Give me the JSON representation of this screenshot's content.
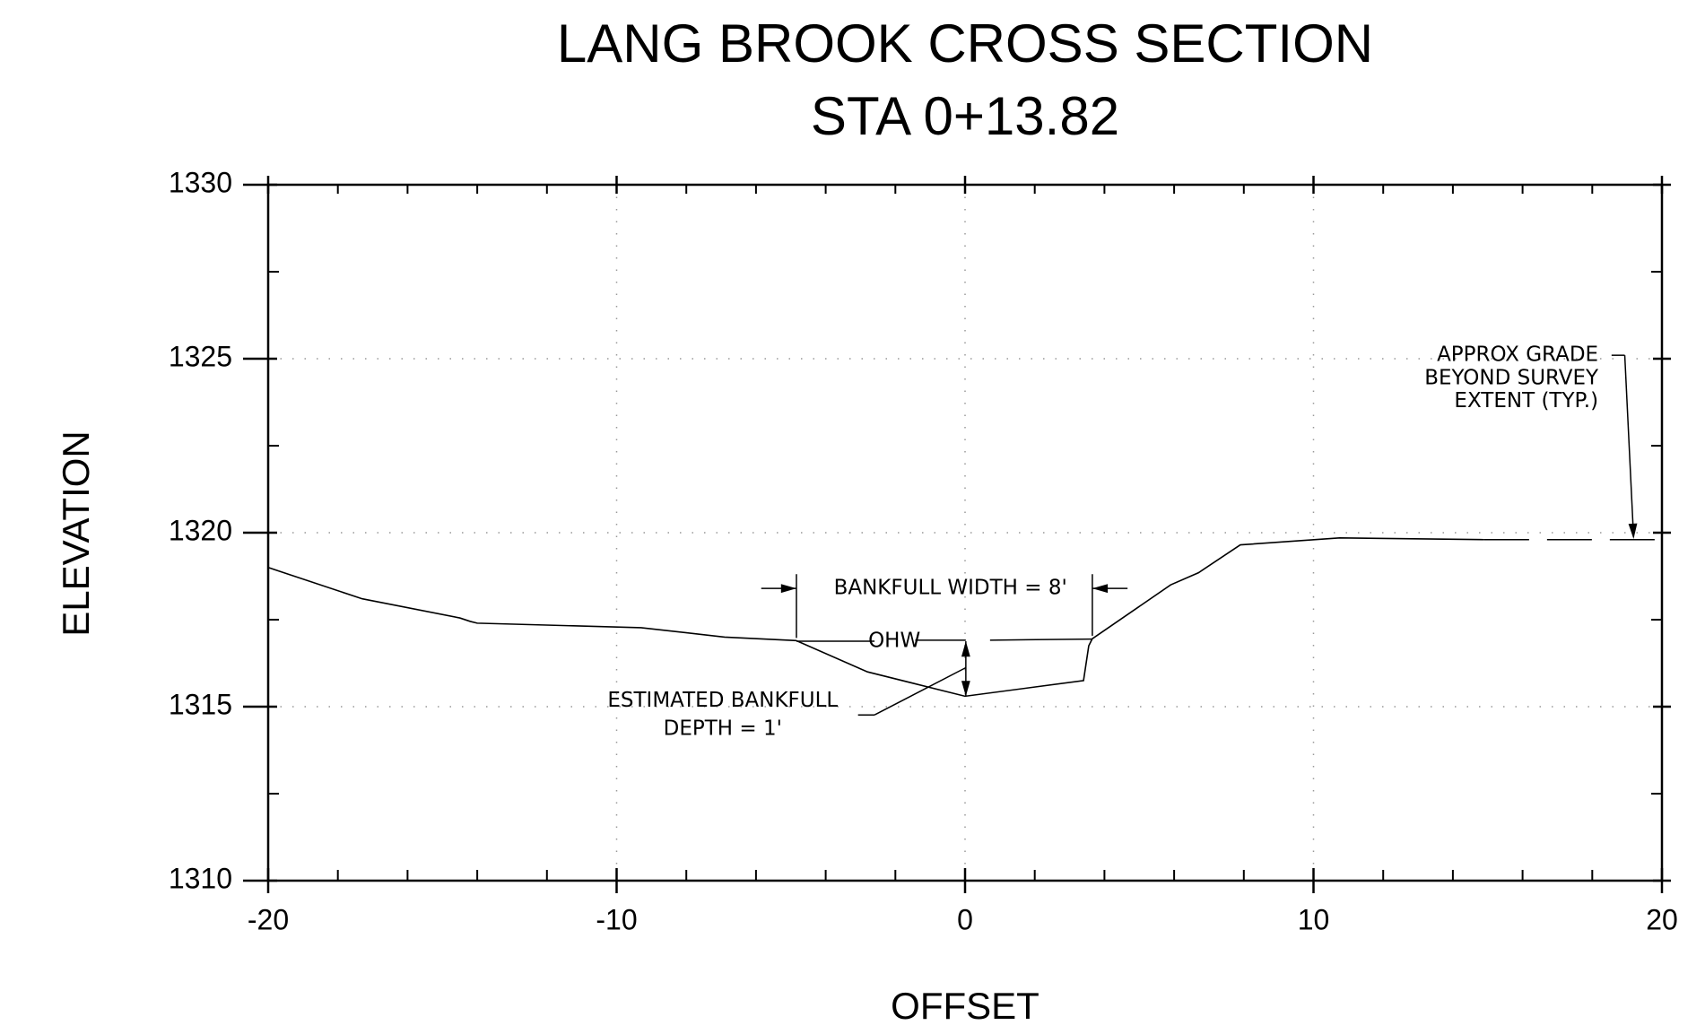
{
  "chart_data": {
    "type": "line",
    "title": [
      "LANG BROOK CROSS SECTION",
      "STA 0+13.82"
    ],
    "xlabel": "OFFSET",
    "ylabel": "ELEVATION",
    "xlim": [
      -20,
      20
    ],
    "ylim": [
      1310,
      1330
    ],
    "xticks": [
      -20,
      -10,
      0,
      10,
      20
    ],
    "yticks": [
      1310,
      1315,
      1320,
      1325,
      1330
    ],
    "xminorticks": [
      -18,
      -16,
      -14,
      -12,
      -8,
      -6,
      -4,
      -2,
      2,
      4,
      6,
      8,
      12,
      14,
      16,
      18
    ],
    "yminorticks": [
      1312.5,
      1317.5,
      1322.5,
      1327.5
    ],
    "grid": true,
    "series": [
      {
        "color": "#000000",
        "dashed": false,
        "x": [
          -20,
          -17.3,
          -14.5,
          -14.2,
          -14.0,
          -9.3,
          -6.9,
          -4.85,
          -2.8,
          0,
          3.4,
          3.55,
          3.65,
          5.9,
          6.7,
          7.9,
          10.75,
          14.9
        ],
        "values": [
          1319.0,
          1318.1,
          1317.55,
          1317.45,
          1317.4,
          1317.27,
          1317.0,
          1316.9,
          1316.0,
          1315.3,
          1315.75,
          1316.75,
          1316.95,
          1318.5,
          1318.85,
          1319.65,
          1319.85,
          1319.8
        ]
      },
      {
        "color": "#000000",
        "dashed": true,
        "x": [
          14.9,
          20
        ],
        "values": [
          1319.8,
          1319.8
        ]
      }
    ],
    "annotations": {
      "bankfull_width": "BANKFULL WIDTH = 8'",
      "ohw": "OHW",
      "bankfull_depth": [
        "ESTIMATED BANKFULL",
        "DEPTH = 1'"
      ],
      "approx_grade": [
        "APPROX GRADE",
        "BEYOND SURVEY",
        "EXTENT (TYP.)"
      ]
    }
  }
}
